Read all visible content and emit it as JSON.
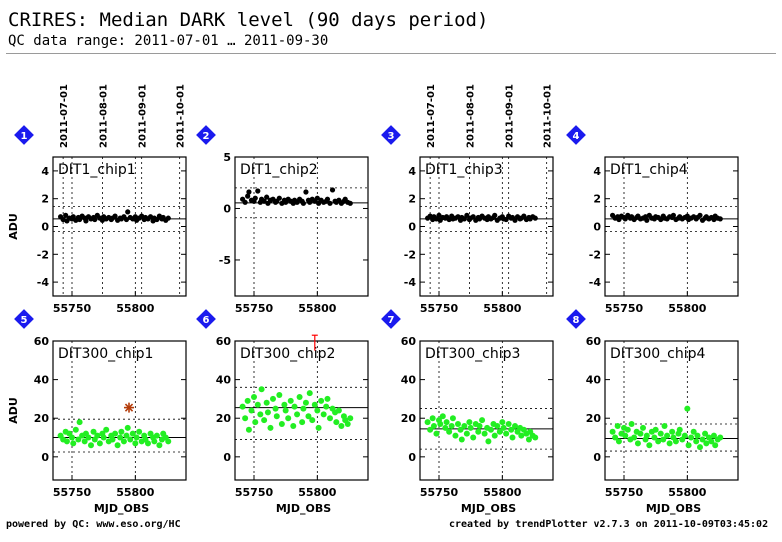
{
  "header": {
    "title": "CRIRES: Median DARK level (90 days period)",
    "subtitle": "QC data range: 2011-07-01 … 2011-09-30"
  },
  "footer": {
    "left": "powered by QC: www.eso.org/HC",
    "right": "created by trendPlotter v2.7.3 on 2011-10-09T03:45:02"
  },
  "colors": {
    "dark_points": "#000000",
    "green_points": "#22ee22",
    "outlier": "#b43c0a",
    "marker": "#1a1aee",
    "error_bar": "#ff0000"
  },
  "date_ticks": [
    "2011-07-01",
    "2011-08-01",
    "2011-09-01",
    "2011-10-01"
  ],
  "chart_data": [
    {
      "type": "scatter",
      "number": "1",
      "label": "DIT1_chip1",
      "xlabel": "",
      "ylabel": "ADU",
      "xlim": [
        55735,
        55840
      ],
      "ylim": [
        -5,
        5
      ],
      "xticks": [
        55750,
        55800
      ],
      "yticks": [
        -4,
        -2,
        0,
        2,
        4
      ],
      "date_tick_x": [
        55743,
        55774,
        55805,
        55835
      ],
      "reference": 0.55,
      "band": [
        -0.35,
        1.45
      ],
      "series": [
        {
          "x": [
            55741,
            55743,
            55745,
            55746,
            55748,
            55750,
            55751,
            55753,
            55755,
            55756,
            55758,
            55760,
            55761,
            55763,
            55765,
            55767,
            55768,
            55770,
            55772,
            55774,
            55775,
            55777,
            55779,
            55781,
            55782,
            55784,
            55786,
            55788,
            55789,
            55791,
            55793,
            55794,
            55796,
            55798,
            55800,
            55801,
            55803,
            55805,
            55807,
            55808,
            55810,
            55812,
            55814,
            55815,
            55817,
            55819,
            55821,
            55822,
            55824,
            55826
          ],
          "y": [
            0.7,
            0.5,
            0.8,
            0.4,
            0.6,
            0.55,
            0.7,
            0.45,
            0.65,
            0.5,
            0.75,
            0.6,
            0.4,
            0.7,
            0.55,
            0.65,
            0.5,
            0.8,
            0.6,
            0.45,
            0.7,
            0.55,
            0.65,
            0.5,
            0.6,
            0.75,
            0.45,
            0.6,
            0.55,
            0.7,
            0.5,
            1.05,
            0.65,
            0.55,
            0.7,
            0.45,
            0.6,
            0.75,
            0.5,
            0.65,
            0.55,
            0.7,
            0.4,
            0.6,
            0.5,
            0.75,
            0.55,
            0.65,
            0.45,
            0.6
          ]
        }
      ]
    },
    {
      "type": "scatter",
      "number": "2",
      "label": "DIT1_chip2",
      "xlabel": "",
      "ylabel": "",
      "xlim": [
        55735,
        55840
      ],
      "ylim": [
        -8.5,
        5
      ],
      "xticks": [
        55750,
        55800
      ],
      "yticks": [
        -5,
        0,
        5
      ],
      "date_tick_x": [],
      "reference": 0.55,
      "band": [
        -0.9,
        2.0
      ],
      "series": [
        {
          "x": [
            55741,
            55743,
            55745,
            55746,
            55748,
            55750,
            55751,
            55753,
            55755,
            55756,
            55758,
            55760,
            55761,
            55763,
            55765,
            55767,
            55768,
            55770,
            55772,
            55774,
            55775,
            55777,
            55779,
            55781,
            55782,
            55784,
            55786,
            55788,
            55789,
            55791,
            55793,
            55794,
            55796,
            55798,
            55800,
            55801,
            55803,
            55805,
            55807,
            55808,
            55810,
            55812,
            55814,
            55815,
            55817,
            55819,
            55821,
            55822,
            55824,
            55826
          ],
          "y": [
            0.9,
            0.6,
            1.2,
            1.6,
            0.8,
            0.7,
            1.0,
            1.7,
            0.6,
            0.9,
            0.7,
            1.1,
            0.5,
            0.8,
            0.9,
            0.6,
            0.7,
            1.0,
            0.5,
            0.8,
            0.6,
            0.9,
            0.7,
            0.5,
            0.8,
            0.6,
            0.9,
            0.7,
            0.5,
            1.6,
            0.8,
            0.6,
            0.9,
            0.7,
            1.0,
            0.5,
            0.8,
            0.6,
            0.7,
            0.9,
            0.5,
            1.8,
            0.7,
            0.6,
            0.8,
            0.5,
            0.7,
            0.9,
            0.6,
            0.5
          ]
        }
      ]
    },
    {
      "type": "scatter",
      "number": "3",
      "label": "DIT1_chip3",
      "xlabel": "",
      "ylabel": "",
      "xlim": [
        55735,
        55840
      ],
      "ylim": [
        -5,
        5
      ],
      "xticks": [
        55750,
        55800
      ],
      "yticks": [
        -4,
        -2,
        0,
        2,
        4
      ],
      "date_tick_x": [
        55743,
        55774,
        55805,
        55835
      ],
      "reference": 0.55,
      "band": [
        -0.35,
        1.45
      ],
      "series": [
        {
          "x": [
            55741,
            55743,
            55745,
            55746,
            55748,
            55750,
            55751,
            55753,
            55755,
            55756,
            55758,
            55760,
            55761,
            55763,
            55765,
            55767,
            55768,
            55770,
            55772,
            55774,
            55775,
            55777,
            55779,
            55781,
            55782,
            55784,
            55786,
            55788,
            55789,
            55791,
            55793,
            55794,
            55796,
            55798,
            55800,
            55801,
            55803,
            55805,
            55807,
            55808,
            55810,
            55812,
            55814,
            55815,
            55817,
            55819,
            55821,
            55822,
            55824,
            55826
          ],
          "y": [
            0.6,
            0.75,
            0.5,
            0.7,
            0.55,
            0.8,
            0.45,
            0.65,
            0.6,
            0.7,
            0.5,
            0.75,
            0.55,
            0.6,
            0.7,
            0.45,
            0.65,
            0.55,
            0.8,
            0.5,
            0.6,
            0.7,
            0.45,
            0.65,
            0.55,
            0.75,
            0.6,
            0.5,
            0.7,
            0.55,
            0.65,
            0.8,
            0.45,
            0.6,
            0.7,
            0.55,
            0.5,
            0.75,
            0.6,
            0.65,
            0.45,
            0.7,
            0.55,
            0.6,
            0.75,
            0.5,
            0.65,
            0.55,
            0.7,
            0.6
          ]
        }
      ]
    },
    {
      "type": "scatter",
      "number": "4",
      "label": "DIT1_chip4",
      "xlabel": "",
      "ylabel": "",
      "xlim": [
        55735,
        55840
      ],
      "ylim": [
        -5,
        5
      ],
      "xticks": [
        55750,
        55800
      ],
      "yticks": [
        -4,
        -2,
        0,
        2,
        4
      ],
      "date_tick_x": [],
      "reference": 0.55,
      "band": [
        -0.35,
        1.45
      ],
      "series": [
        {
          "x": [
            55741,
            55743,
            55745,
            55746,
            55748,
            55750,
            55751,
            55753,
            55755,
            55756,
            55758,
            55760,
            55761,
            55763,
            55765,
            55767,
            55768,
            55770,
            55772,
            55774,
            55775,
            55777,
            55779,
            55781,
            55782,
            55784,
            55786,
            55788,
            55789,
            55791,
            55793,
            55794,
            55796,
            55798,
            55800,
            55801,
            55803,
            55805,
            55807,
            55808,
            55810,
            55812,
            55814,
            55815,
            55817,
            55819,
            55821,
            55822,
            55824,
            55826
          ],
          "y": [
            0.8,
            0.6,
            0.7,
            0.5,
            0.75,
            0.65,
            0.55,
            0.8,
            0.6,
            0.7,
            0.5,
            0.65,
            0.75,
            0.55,
            0.6,
            0.7,
            0.45,
            0.8,
            0.6,
            0.55,
            0.7,
            0.65,
            0.5,
            0.75,
            0.6,
            0.55,
            0.7,
            0.65,
            0.8,
            0.5,
            0.6,
            0.7,
            0.55,
            0.65,
            0.75,
            0.5,
            0.6,
            0.7,
            0.55,
            0.65,
            0.8,
            0.45,
            0.6,
            0.7,
            0.55,
            0.65,
            0.5,
            0.75,
            0.6,
            0.55
          ]
        }
      ]
    },
    {
      "type": "scatter",
      "number": "5",
      "label": "DIT300_chip1",
      "xlabel": "MJD_OBS",
      "ylabel": "ADU",
      "xlim": [
        55735,
        55840
      ],
      "ylim": [
        -12,
        60
      ],
      "xticks": [
        55750,
        55800
      ],
      "yticks": [
        0,
        20,
        40,
        60
      ],
      "date_tick_x": [],
      "reference": 10,
      "band": [
        2.5,
        19.5
      ],
      "outliers": [
        {
          "x": 55795,
          "y": 25.5
        }
      ],
      "series": [
        {
          "x": [
            55741,
            55743,
            55745,
            55746,
            55748,
            55750,
            55751,
            55753,
            55755,
            55756,
            55758,
            55760,
            55761,
            55763,
            55765,
            55767,
            55768,
            55770,
            55772,
            55774,
            55775,
            55777,
            55779,
            55781,
            55782,
            55784,
            55786,
            55788,
            55789,
            55791,
            55793,
            55794,
            55796,
            55798,
            55800,
            55801,
            55803,
            55805,
            55807,
            55808,
            55810,
            55812,
            55814,
            55815,
            55817,
            55819,
            55821,
            55822,
            55824,
            55826
          ],
          "y": [
            11,
            9,
            13,
            8,
            12,
            10,
            7,
            14,
            9,
            18,
            11,
            8,
            12,
            10,
            6,
            13,
            9,
            11,
            7,
            12,
            10,
            14,
            8,
            11,
            9,
            12,
            6,
            10,
            13,
            8,
            11,
            15,
            9,
            12,
            7,
            10,
            13,
            8,
            11,
            9,
            7,
            12,
            10,
            8,
            11,
            6,
            9,
            12,
            10,
            8
          ]
        }
      ]
    },
    {
      "type": "scatter",
      "number": "6",
      "label": "DIT300_chip2",
      "xlabel": "MJD_OBS",
      "ylabel": "",
      "xlim": [
        55735,
        55840
      ],
      "ylim": [
        -12,
        60
      ],
      "xticks": [
        55750,
        55800
      ],
      "yticks": [
        0,
        20,
        40,
        60
      ],
      "date_tick_x": [],
      "reference": 25.5,
      "band": [
        9,
        36
      ],
      "error_bar": {
        "x": 55798,
        "y_low": 55,
        "y_high": 63
      },
      "series": [
        {
          "x": [
            55741,
            55743,
            55745,
            55746,
            55748,
            55750,
            55751,
            55753,
            55755,
            55756,
            55758,
            55760,
            55761,
            55763,
            55765,
            55767,
            55768,
            55770,
            55772,
            55774,
            55775,
            55777,
            55779,
            55781,
            55782,
            55784,
            55786,
            55788,
            55789,
            55791,
            55793,
            55794,
            55796,
            55798,
            55800,
            55801,
            55803,
            55805,
            55807,
            55808,
            55810,
            55812,
            55814,
            55815,
            55817,
            55819,
            55821,
            55822,
            55824,
            55826
          ],
          "y": [
            26,
            20,
            29,
            14,
            24,
            31,
            18,
            27,
            22,
            35,
            19,
            28,
            23,
            15,
            30,
            25,
            21,
            32,
            17,
            27,
            24,
            20,
            29,
            16,
            26,
            22,
            31,
            18,
            25,
            28,
            21,
            33,
            19,
            27,
            24,
            15,
            29,
            22,
            26,
            30,
            20,
            25,
            23,
            18,
            24,
            16,
            21,
            19,
            17,
            20
          ]
        }
      ]
    },
    {
      "type": "scatter",
      "number": "7",
      "label": "DIT300_chip3",
      "xlabel": "MJD_OBS",
      "ylabel": "",
      "xlim": [
        55735,
        55840
      ],
      "ylim": [
        -12,
        60
      ],
      "xticks": [
        55750,
        55800
      ],
      "yticks": [
        0,
        20,
        40,
        60
      ],
      "date_tick_x": [],
      "reference": 14.5,
      "band": [
        4,
        25
      ],
      "series": [
        {
          "x": [
            55741,
            55743,
            55745,
            55746,
            55748,
            55750,
            55751,
            55753,
            55755,
            55756,
            55758,
            55760,
            55761,
            55763,
            55765,
            55767,
            55768,
            55770,
            55772,
            55774,
            55775,
            55777,
            55779,
            55781,
            55782,
            55784,
            55786,
            55788,
            55789,
            55791,
            55793,
            55794,
            55796,
            55798,
            55800,
            55801,
            55803,
            55805,
            55807,
            55808,
            55810,
            55812,
            55814,
            55815,
            55817,
            55819,
            55821,
            55822,
            55824,
            55826
          ],
          "y": [
            18,
            14,
            20,
            16,
            12,
            19,
            17,
            21,
            15,
            18,
            13,
            16,
            20,
            11,
            17,
            14,
            9,
            16,
            12,
            18,
            15,
            10,
            17,
            13,
            16,
            19,
            12,
            15,
            8,
            14,
            17,
            11,
            16,
            13,
            18,
            15,
            12,
            17,
            14,
            10,
            16,
            13,
            15,
            11,
            14,
            12,
            9,
            13,
            11,
            10
          ]
        }
      ]
    },
    {
      "type": "scatter",
      "number": "8",
      "label": "DIT300_chip4",
      "xlabel": "MJD_OBS",
      "ylabel": "",
      "xlim": [
        55735,
        55840
      ],
      "ylim": [
        -12,
        60
      ],
      "xticks": [
        55750,
        55800
      ],
      "yticks": [
        0,
        20,
        40,
        60
      ],
      "date_tick_x": [],
      "reference": 9.5,
      "band": [
        3,
        17
      ],
      "series": [
        {
          "x": [
            55741,
            55743,
            55745,
            55746,
            55748,
            55750,
            55751,
            55753,
            55755,
            55756,
            55758,
            55760,
            55761,
            55763,
            55765,
            55767,
            55768,
            55770,
            55772,
            55774,
            55775,
            55777,
            55779,
            55781,
            55782,
            55784,
            55786,
            55788,
            55789,
            55791,
            55793,
            55794,
            55796,
            55798,
            55800,
            55801,
            55803,
            55805,
            55807,
            55808,
            55810,
            55812,
            55814,
            55815,
            55817,
            55819,
            55821,
            55822,
            55824,
            55826
          ],
          "y": [
            13,
            10,
            16,
            8,
            12,
            15,
            11,
            14,
            9,
            17,
            10,
            13,
            7,
            12,
            15,
            9,
            11,
            6,
            13,
            10,
            14,
            8,
            12,
            9,
            16,
            11,
            7,
            13,
            10,
            8,
            12,
            14,
            9,
            11,
            25,
            6,
            10,
            13,
            8,
            11,
            5,
            9,
            12,
            7,
            10,
            8,
            11,
            6,
            9,
            10
          ]
        }
      ]
    }
  ]
}
